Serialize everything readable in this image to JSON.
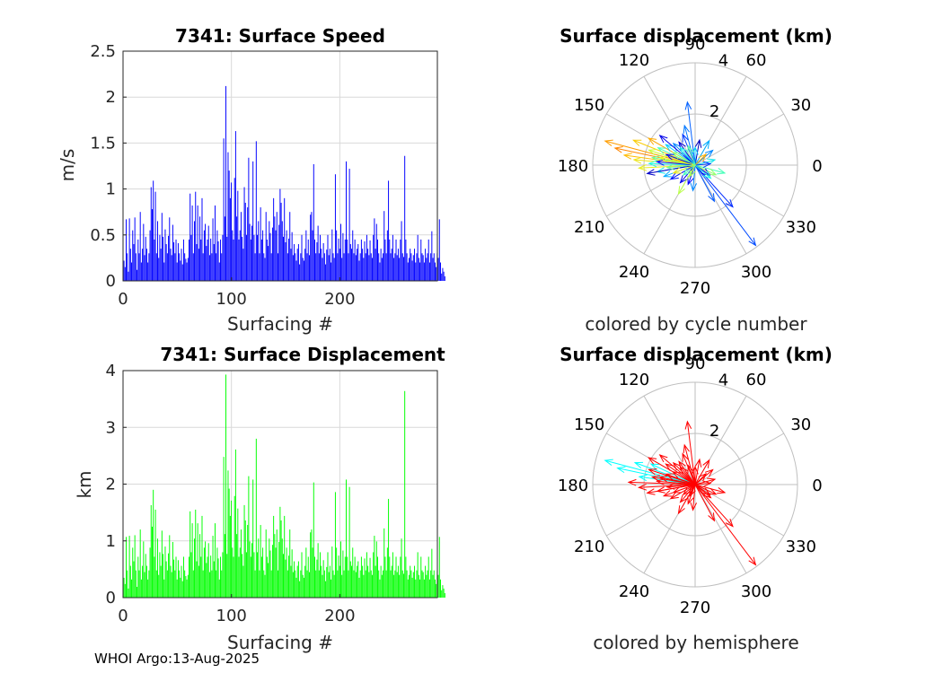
{
  "footer": "WHOI Argo:13-Aug-2025",
  "colors": {
    "speed_bars": "#0000ff",
    "displacement_bars": "#00ff00",
    "grid": "#d9d9d9",
    "polar_grid": "#bfbfbf"
  },
  "chart_data": [
    {
      "type": "bar",
      "title": "7341: Surface Speed",
      "xlabel": "Surfacing #",
      "ylabel": "m/s",
      "xlim": [
        0,
        290
      ],
      "ylim": [
        0,
        2.5
      ],
      "xticks": [
        0,
        100,
        200
      ],
      "xticklabels": [
        "0",
        "100",
        "200"
      ],
      "yticks": [
        0,
        0.5,
        1,
        1.5,
        2,
        2.5
      ],
      "yticklabels": [
        "0",
        "0.5",
        "1",
        "1.5",
        "2",
        "2.5"
      ],
      "grid": true,
      "color": "#0000ff",
      "values": [
        0.22,
        0.15,
        0.67,
        0.3,
        0.1,
        0.68,
        0.35,
        0.2,
        0.55,
        0.4,
        0.69,
        0.3,
        0.12,
        0.45,
        0.3,
        0.75,
        0.2,
        0.35,
        0.62,
        0.28,
        0.48,
        0.35,
        0.2,
        0.3,
        0.55,
        1.02,
        0.78,
        1.09,
        0.45,
        0.97,
        0.3,
        0.65,
        0.25,
        0.5,
        0.35,
        0.74,
        0.48,
        0.2,
        0.56,
        0.4,
        0.3,
        0.49,
        0.69,
        0.35,
        0.28,
        0.61,
        0.42,
        0.3,
        0.45,
        0.2,
        0.41,
        0.3,
        0.22,
        0.35,
        0.18,
        0.45,
        0.3,
        0.24,
        0.2,
        0.25,
        0.45,
        0.95,
        0.5,
        0.82,
        0.3,
        0.65,
        0.97,
        0.4,
        0.82,
        0.35,
        0.7,
        0.45,
        0.9,
        0.3,
        0.55,
        0.62,
        0.38,
        0.45,
        0.6,
        0.28,
        0.46,
        0.3,
        0.68,
        0.4,
        0.82,
        0.3,
        0.55,
        0.43,
        0.2,
        0.45,
        0.3,
        0.5,
        1.55,
        0.7,
        2.12,
        0.48,
        1.4,
        1.2,
        0.9,
        1.07,
        0.55,
        0.45,
        1.12,
        1.63,
        0.7,
        0.98,
        0.45,
        0.55,
        0.75,
        0.48,
        0.35,
        1.02,
        0.85,
        0.5,
        0.8,
        1.34,
        0.62,
        0.45,
        0.6,
        1.3,
        0.5,
        0.3,
        1.52,
        0.5,
        0.65,
        0.3,
        0.8,
        0.45,
        0.55,
        0.3,
        0.25,
        0.75,
        0.45,
        0.38,
        0.65,
        0.52,
        0.3,
        0.58,
        0.9,
        0.7,
        0.55,
        0.75,
        0.3,
        0.61,
        1.0,
        0.85,
        0.65,
        0.48,
        0.9,
        0.42,
        0.55,
        0.3,
        0.46,
        0.75,
        0.35,
        0.53,
        0.28,
        0.4,
        0.3,
        0.22,
        0.35,
        0.4,
        0.18,
        0.3,
        0.5,
        0.25,
        0.22,
        0.35,
        0.55,
        0.3,
        0.45,
        0.28,
        0.72,
        0.75,
        0.55,
        1.27,
        0.45,
        0.3,
        0.42,
        0.6,
        0.3,
        0.5,
        0.35,
        0.25,
        0.41,
        0.3,
        0.18,
        0.34,
        0.5,
        0.28,
        0.35,
        0.2,
        0.56,
        0.3,
        0.25,
        1.16,
        0.55,
        0.3,
        0.46,
        0.35,
        0.62,
        0.25,
        0.52,
        0.3,
        0.45,
        1.3,
        0.45,
        0.3,
        1.22,
        0.4,
        0.35,
        0.55,
        0.3,
        0.45,
        0.28,
        0.35,
        0.4,
        0.22,
        0.3,
        0.45,
        0.35,
        0.25,
        0.43,
        0.3,
        0.5,
        0.35,
        0.28,
        0.44,
        0.3,
        0.25,
        0.5,
        0.68,
        0.35,
        0.62,
        0.45,
        0.3,
        0.2,
        0.35,
        0.25,
        0.3,
        0.76,
        0.45,
        0.3,
        0.55,
        1.09,
        0.45,
        0.3,
        0.35,
        0.5,
        0.25,
        0.3,
        0.45,
        0.28,
        0.35,
        0.25,
        0.45,
        0.65,
        0.3,
        0.26,
        1.36,
        0.45,
        0.3,
        0.2,
        0.25,
        0.35,
        0.3,
        0.22,
        0.28,
        0.35,
        0.2,
        0.3,
        0.5,
        0.25,
        0.2,
        0.45,
        0.3,
        0.28,
        0.2,
        0.35,
        0.25,
        0.3,
        0.45,
        0.2,
        0.3,
        0.54,
        0.25,
        0.3,
        0.2,
        0.15,
        0.3,
        0.25,
        0.67,
        0.2,
        0.08,
        0.14,
        0.1,
        0.05
      ]
    },
    {
      "type": "bar",
      "title": "7341: Surface Displacement",
      "xlabel": "Surfacing #",
      "ylabel": "km",
      "xlim": [
        0,
        290
      ],
      "ylim": [
        0,
        4
      ],
      "xticks": [
        0,
        100,
        200
      ],
      "xticklabels": [
        "0",
        "100",
        "200"
      ],
      "yticks": [
        0,
        1,
        2,
        3,
        4
      ],
      "yticklabels": [
        "0",
        "1",
        "2",
        "3",
        "4"
      ],
      "grid": true,
      "color": "#00ff00",
      "values": [
        0.35,
        0.24,
        1.07,
        0.48,
        0.16,
        1.09,
        0.56,
        0.32,
        0.88,
        0.64,
        1.1,
        0.48,
        0.19,
        0.72,
        0.48,
        1.2,
        0.32,
        0.56,
        0.99,
        0.45,
        0.77,
        0.56,
        0.32,
        0.48,
        0.88,
        1.63,
        1.25,
        1.9,
        0.72,
        1.55,
        0.48,
        1.04,
        0.4,
        0.8,
        0.56,
        1.18,
        0.77,
        0.32,
        0.9,
        0.64,
        0.48,
        0.78,
        1.1,
        0.56,
        0.45,
        0.98,
        0.67,
        0.48,
        0.72,
        0.32,
        0.66,
        0.48,
        0.35,
        0.56,
        0.29,
        0.72,
        0.48,
        0.38,
        0.32,
        0.4,
        0.72,
        1.52,
        0.8,
        1.31,
        0.48,
        1.04,
        1.55,
        0.64,
        1.31,
        0.56,
        1.12,
        0.72,
        1.44,
        0.48,
        0.88,
        0.99,
        0.61,
        0.72,
        0.96,
        0.45,
        0.74,
        0.48,
        1.09,
        0.64,
        1.31,
        0.48,
        0.88,
        0.69,
        0.32,
        0.72,
        0.48,
        0.8,
        2.48,
        1.12,
        3.93,
        0.77,
        2.24,
        1.92,
        1.44,
        1.71,
        0.88,
        0.72,
        1.79,
        2.61,
        1.12,
        1.57,
        0.72,
        0.88,
        1.2,
        0.77,
        0.56,
        1.63,
        1.36,
        0.8,
        1.28,
        2.14,
        0.99,
        0.72,
        0.96,
        2.08,
        0.8,
        0.48,
        2.8,
        0.8,
        1.04,
        0.48,
        1.28,
        0.72,
        0.88,
        0.48,
        0.4,
        1.2,
        0.72,
        0.61,
        1.04,
        0.83,
        0.48,
        0.93,
        1.44,
        1.12,
        0.88,
        1.2,
        0.48,
        0.98,
        1.6,
        1.36,
        1.04,
        0.77,
        1.44,
        0.67,
        0.88,
        0.48,
        0.74,
        1.2,
        0.56,
        0.85,
        0.45,
        0.64,
        0.48,
        0.35,
        0.56,
        0.64,
        0.29,
        0.48,
        0.8,
        0.4,
        0.35,
        0.56,
        0.88,
        0.48,
        0.72,
        0.45,
        1.15,
        1.2,
        0.88,
        2.03,
        0.72,
        0.48,
        0.67,
        0.96,
        0.48,
        0.8,
        0.56,
        0.4,
        0.66,
        0.48,
        0.29,
        0.54,
        0.8,
        0.45,
        0.56,
        0.32,
        0.9,
        0.48,
        0.4,
        1.86,
        0.88,
        0.48,
        0.74,
        0.56,
        0.99,
        0.4,
        0.83,
        0.48,
        0.72,
        2.08,
        0.72,
        0.48,
        1.95,
        0.64,
        0.56,
        0.88,
        0.48,
        0.72,
        0.45,
        0.56,
        0.64,
        0.35,
        0.48,
        0.72,
        0.56,
        0.4,
        0.69,
        0.48,
        0.8,
        0.56,
        0.45,
        0.7,
        0.48,
        0.4,
        0.8,
        1.09,
        0.56,
        0.99,
        0.72,
        0.48,
        0.32,
        0.56,
        0.4,
        0.48,
        1.22,
        0.72,
        0.48,
        0.88,
        1.74,
        0.72,
        0.48,
        0.56,
        0.8,
        0.4,
        0.48,
        0.72,
        0.45,
        0.56,
        0.4,
        0.72,
        1.04,
        0.48,
        0.42,
        3.64,
        0.72,
        0.48,
        0.32,
        0.4,
        0.56,
        0.48,
        0.35,
        0.45,
        0.56,
        0.32,
        0.48,
        0.8,
        0.4,
        0.32,
        0.72,
        0.48,
        0.45,
        0.32,
        0.56,
        0.4,
        0.48,
        0.72,
        0.32,
        0.48,
        0.86,
        0.4,
        0.48,
        0.32,
        0.24,
        0.48,
        0.4,
        1.07,
        0.32,
        0.13,
        0.22,
        0.16,
        0.08
      ]
    },
    {
      "type": "polar-quiver",
      "title": "Surface displacement (km)",
      "caption": "colored by cycle number",
      "rlim": [
        0,
        4
      ],
      "rticks": [
        2,
        4
      ],
      "rticklabels": [
        "2",
        "4"
      ],
      "angle_ticks": [
        0,
        30,
        60,
        90,
        120,
        150,
        180,
        210,
        240,
        270,
        300,
        330
      ],
      "angle_ticklabels": [
        "0",
        "30",
        "60",
        "90",
        "120",
        "150",
        "180",
        "210",
        "240",
        "270",
        "300",
        "330"
      ],
      "colormap": [
        "#00008f",
        "#0000ff",
        "#0060ff",
        "#00bfff",
        "#20ffdf",
        "#80ff80",
        "#dfff20",
        "#ffbf00",
        "#ff6000"
      ],
      "arrows": [
        {
          "angle": 165,
          "r": 3.64,
          "c": 0.92
        },
        {
          "angle": 168,
          "r": 3.2,
          "c": 0.95
        },
        {
          "angle": 172,
          "r": 2.8,
          "c": 0.88
        },
        {
          "angle": 158,
          "r": 2.6,
          "c": 0.85
        },
        {
          "angle": 175,
          "r": 2.4,
          "c": 0.8
        },
        {
          "angle": 150,
          "r": 2.1,
          "c": 0.9
        },
        {
          "angle": 183,
          "r": 2.2,
          "c": 0.78
        },
        {
          "angle": 162,
          "r": 1.9,
          "c": 0.72
        },
        {
          "angle": 170,
          "r": 1.7,
          "c": 0.6
        },
        {
          "angle": 155,
          "r": 1.6,
          "c": 0.55
        },
        {
          "angle": 178,
          "r": 1.8,
          "c": 0.5
        },
        {
          "angle": 190,
          "r": 1.5,
          "c": 0.45
        },
        {
          "angle": 145,
          "r": 1.4,
          "c": 0.4
        },
        {
          "angle": 200,
          "r": 1.3,
          "c": 0.35
        },
        {
          "angle": 135,
          "r": 1.2,
          "c": 0.3
        },
        {
          "angle": 97,
          "r": 2.48,
          "c": 0.25
        },
        {
          "angle": 105,
          "r": 1.6,
          "c": 0.28
        },
        {
          "angle": 112,
          "r": 1.3,
          "c": 0.2
        },
        {
          "angle": -53,
          "r": 3.93,
          "c": 0.22
        },
        {
          "angle": -48,
          "r": 2.2,
          "c": 0.18
        },
        {
          "angle": -62,
          "r": 1.6,
          "c": 0.24
        },
        {
          "angle": 60,
          "r": 1.1,
          "c": 0.35
        },
        {
          "angle": 40,
          "r": 0.9,
          "c": 0.3
        },
        {
          "angle": 15,
          "r": 0.8,
          "c": 0.45
        },
        {
          "angle": -15,
          "r": 1.2,
          "c": 0.55
        },
        {
          "angle": -25,
          "r": 0.9,
          "c": 0.65
        },
        {
          "angle": 210,
          "r": 1.1,
          "c": 0.15
        },
        {
          "angle": 230,
          "r": 0.9,
          "c": 0.1
        },
        {
          "angle": 250,
          "r": 0.8,
          "c": 0.12
        },
        {
          "angle": 265,
          "r": 1.0,
          "c": 0.3
        },
        {
          "angle": 240,
          "r": 1.3,
          "c": 0.7
        },
        {
          "angle": 140,
          "r": 1.8,
          "c": 0.1
        },
        {
          "angle": 125,
          "r": 1.1,
          "c": 0.08
        },
        {
          "angle": 80,
          "r": 1.0,
          "c": 0.05
        },
        {
          "angle": 190,
          "r": 1.9,
          "c": 0.06
        },
        {
          "angle": 160,
          "r": 1.2,
          "c": 0.12
        },
        {
          "angle": 175,
          "r": 1.5,
          "c": 0.14
        },
        {
          "angle": 5,
          "r": 0.6,
          "c": 0.2
        },
        {
          "angle": -35,
          "r": 0.7,
          "c": 0.1
        },
        {
          "angle": 320,
          "r": 0.8,
          "c": 0.5
        },
        {
          "angle": 150,
          "r": 1.0,
          "c": 0.65
        },
        {
          "angle": 168,
          "r": 1.4,
          "c": 0.75
        },
        {
          "angle": 185,
          "r": 1.1,
          "c": 0.6
        },
        {
          "angle": 200,
          "r": 0.9,
          "c": 0.8
        },
        {
          "angle": 45,
          "r": 0.6,
          "c": 0.9
        },
        {
          "angle": 90,
          "r": 0.7,
          "c": 0.4
        },
        {
          "angle": 220,
          "r": 0.6,
          "c": 0.55
        },
        {
          "angle": 130,
          "r": 0.9,
          "c": 0.48
        },
        {
          "angle": 110,
          "r": 0.8,
          "c": 0.58
        },
        {
          "angle": 245,
          "r": 0.5,
          "c": 0.68
        }
      ]
    },
    {
      "type": "polar-quiver",
      "title": "Surface displacement (km)",
      "caption": "colored by hemisphere",
      "rlim": [
        0,
        4
      ],
      "rticks": [
        2,
        4
      ],
      "rticklabels": [
        "2",
        "4"
      ],
      "angle_ticks": [
        0,
        30,
        60,
        90,
        120,
        150,
        180,
        210,
        240,
        270,
        300,
        330
      ],
      "angle_ticklabels": [
        "0",
        "30",
        "60",
        "90",
        "120",
        "150",
        "180",
        "210",
        "240",
        "270",
        "300",
        "330"
      ],
      "hemisphere_colors": {
        "north": "#00ffff",
        "south": "#ff0000"
      },
      "arrows": [
        {
          "angle": 165,
          "r": 3.64,
          "h": "north"
        },
        {
          "angle": 168,
          "r": 3.1,
          "h": "north"
        },
        {
          "angle": 160,
          "r": 2.5,
          "h": "north"
        },
        {
          "angle": 172,
          "r": 2.2,
          "h": "north"
        },
        {
          "angle": 155,
          "r": 1.9,
          "h": "north"
        },
        {
          "angle": 178,
          "r": 2.6,
          "h": "south"
        },
        {
          "angle": 150,
          "r": 2.1,
          "h": "south"
        },
        {
          "angle": 183,
          "r": 2.2,
          "h": "south"
        },
        {
          "angle": 162,
          "r": 1.9,
          "h": "south"
        },
        {
          "angle": 170,
          "r": 1.7,
          "h": "south"
        },
        {
          "angle": 190,
          "r": 1.5,
          "h": "south"
        },
        {
          "angle": 145,
          "r": 1.4,
          "h": "south"
        },
        {
          "angle": 200,
          "r": 1.3,
          "h": "south"
        },
        {
          "angle": 135,
          "r": 1.2,
          "h": "south"
        },
        {
          "angle": 97,
          "r": 2.48,
          "h": "south"
        },
        {
          "angle": 105,
          "r": 1.6,
          "h": "south"
        },
        {
          "angle": 112,
          "r": 1.3,
          "h": "south"
        },
        {
          "angle": -53,
          "r": 3.93,
          "h": "south"
        },
        {
          "angle": -48,
          "r": 2.2,
          "h": "south"
        },
        {
          "angle": -62,
          "r": 1.6,
          "h": "south"
        },
        {
          "angle": 60,
          "r": 1.1,
          "h": "south"
        },
        {
          "angle": 40,
          "r": 0.9,
          "h": "south"
        },
        {
          "angle": 15,
          "r": 0.8,
          "h": "south"
        },
        {
          "angle": -15,
          "r": 1.2,
          "h": "south"
        },
        {
          "angle": -25,
          "r": 0.9,
          "h": "south"
        },
        {
          "angle": 210,
          "r": 1.1,
          "h": "south"
        },
        {
          "angle": 230,
          "r": 0.9,
          "h": "south"
        },
        {
          "angle": 250,
          "r": 0.8,
          "h": "south"
        },
        {
          "angle": 265,
          "r": 1.0,
          "h": "south"
        },
        {
          "angle": 240,
          "r": 1.3,
          "h": "south"
        },
        {
          "angle": 140,
          "r": 1.8,
          "h": "south"
        },
        {
          "angle": 125,
          "r": 1.1,
          "h": "south"
        },
        {
          "angle": 80,
          "r": 1.0,
          "h": "south"
        },
        {
          "angle": 190,
          "r": 1.9,
          "h": "south"
        },
        {
          "angle": 160,
          "r": 1.2,
          "h": "south"
        },
        {
          "angle": 175,
          "r": 1.5,
          "h": "south"
        },
        {
          "angle": 5,
          "r": 0.6,
          "h": "south"
        },
        {
          "angle": -35,
          "r": 0.7,
          "h": "south"
        },
        {
          "angle": 320,
          "r": 0.8,
          "h": "south"
        },
        {
          "angle": 150,
          "r": 1.0,
          "h": "south"
        },
        {
          "angle": 168,
          "r": 1.4,
          "h": "south"
        },
        {
          "angle": 185,
          "r": 1.1,
          "h": "south"
        },
        {
          "angle": 200,
          "r": 0.9,
          "h": "south"
        },
        {
          "angle": 45,
          "r": 0.6,
          "h": "south"
        },
        {
          "angle": 90,
          "r": 0.7,
          "h": "south"
        },
        {
          "angle": 220,
          "r": 0.6,
          "h": "south"
        },
        {
          "angle": 130,
          "r": 0.9,
          "h": "south"
        },
        {
          "angle": 110,
          "r": 0.8,
          "h": "south"
        },
        {
          "angle": 245,
          "r": 0.5,
          "h": "south"
        }
      ]
    }
  ]
}
